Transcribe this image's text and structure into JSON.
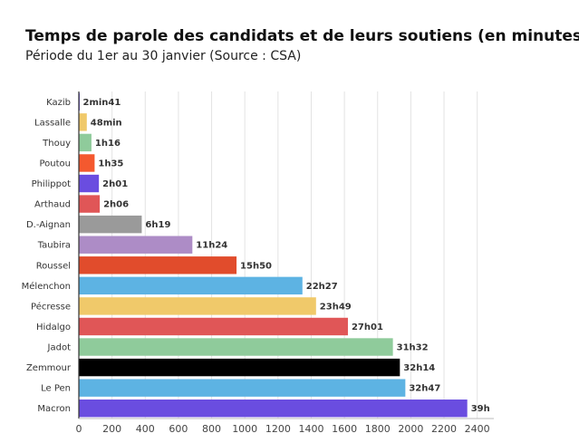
{
  "chart_data": {
    "type": "bar",
    "orientation": "horizontal",
    "title": "Temps de parole des candidats et de leurs soutiens (en minutes)",
    "subtitle": "Période du 1er au 30 janvier (Source : CSA)",
    "xlabel": "",
    "ylabel": "",
    "xlim": [
      0,
      2500
    ],
    "x_ticks": [
      0,
      200,
      400,
      600,
      800,
      1000,
      1200,
      1400,
      1600,
      1800,
      2000,
      2200,
      2400
    ],
    "grid": true,
    "legend": "none",
    "categories": [
      "Kazib",
      "Lassalle",
      "Thouy",
      "Poutou",
      "Philippot",
      "Arthaud",
      "D.-Aignan",
      "Taubira",
      "Roussel",
      "Mélenchon",
      "Pécresse",
      "Hidalgo",
      "Jadot",
      "Zemmour",
      "Le Pen",
      "Macron"
    ],
    "values": [
      2.68,
      48,
      76,
      95,
      121,
      126,
      379,
      684,
      950,
      1347,
      1429,
      1621,
      1892,
      1934,
      1967,
      2340
    ],
    "data_labels": [
      "2min41",
      "48min",
      "1h16",
      "1h35",
      "2h01",
      "2h06",
      "6h19",
      "11h24",
      "15h50",
      "22h27",
      "23h49",
      "27h01",
      "31h32",
      "32h14",
      "32h47",
      "39h"
    ],
    "colors": [
      "#6f55d9",
      "#f0c96a",
      "#8fcb9b",
      "#f4592f",
      "#6a4de0",
      "#e05657",
      "#9a9a9a",
      "#ad8cc6",
      "#e14c2c",
      "#5db3e3",
      "#f0c96a",
      "#e05657",
      "#8fcb9b",
      "#000000",
      "#5db3e3",
      "#6a4de0"
    ]
  }
}
